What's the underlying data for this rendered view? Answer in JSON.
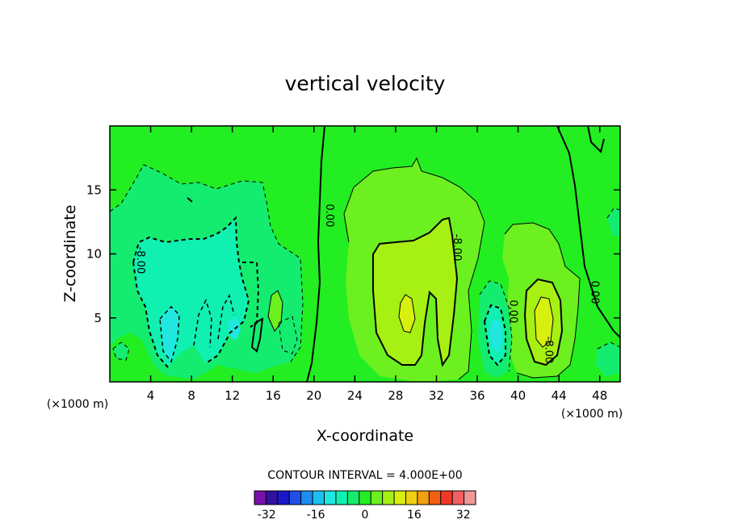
{
  "chart_data": {
    "type": "contour",
    "title": "vertical velocity",
    "xlabel": "X-coordinate",
    "ylabel": "Z-coordinate",
    "x_unit": "(×1000 m)",
    "z_unit": "(×1000 m)",
    "xlim": [
      0,
      50
    ],
    "ylim": [
      0,
      20
    ],
    "x_ticks": [
      4,
      8,
      12,
      16,
      20,
      24,
      28,
      32,
      36,
      40,
      44,
      48
    ],
    "y_ticks": [
      5,
      10,
      15
    ],
    "contour_interval_text": "CONTOUR INTERVAL = 4.000E+00",
    "contour_interval": 4,
    "contour_labels": [
      {
        "text": "-8.00",
        "x": 3,
        "z": 9.5
      },
      {
        "text": "0.00",
        "x": 21.5,
        "z": 13
      },
      {
        "text": "-8.00",
        "x": 34,
        "z": 10.5
      },
      {
        "text": "0.00",
        "x": 39.5,
        "z": 5.5
      },
      {
        "text": "-8.00",
        "x": 43,
        "z": 2.5
      },
      {
        "text": "0.00",
        "x": 47.5,
        "z": 7
      }
    ],
    "colorbar": {
      "tick_labels": [
        "-32",
        "-16",
        "0",
        "16",
        "32"
      ],
      "tick_values": [
        -32,
        -16,
        0,
        16,
        32
      ],
      "levels": [
        -36,
        -32,
        -28,
        -24,
        -20,
        -16,
        -12,
        -8,
        -4,
        0,
        4,
        8,
        12,
        16,
        20,
        24,
        28,
        32,
        36
      ],
      "colors": [
        "#7a10a8",
        "#3010a0",
        "#1818c8",
        "#1e50e8",
        "#1e8cf0",
        "#1cc0f0",
        "#20e8e0",
        "#10f0b0",
        "#14ec70",
        "#22ee22",
        "#6cf020",
        "#a6f014",
        "#d8f010",
        "#f0d010",
        "#f0a010",
        "#f06010",
        "#f03828",
        "#f06060",
        "#f09898"
      ]
    },
    "features": [
      {
        "kind": "background",
        "value": 0
      },
      {
        "kind": "region",
        "value": -4,
        "description": "left updraft column"
      },
      {
        "kind": "region",
        "value": -8,
        "description": "left core"
      },
      {
        "kind": "region",
        "value": 4,
        "description": "central region"
      },
      {
        "kind": "region",
        "value": 8,
        "description": "central core"
      },
      {
        "kind": "region",
        "value": -12,
        "description": "right narrow core"
      },
      {
        "kind": "region",
        "value": 12,
        "description": "right core"
      }
    ]
  }
}
